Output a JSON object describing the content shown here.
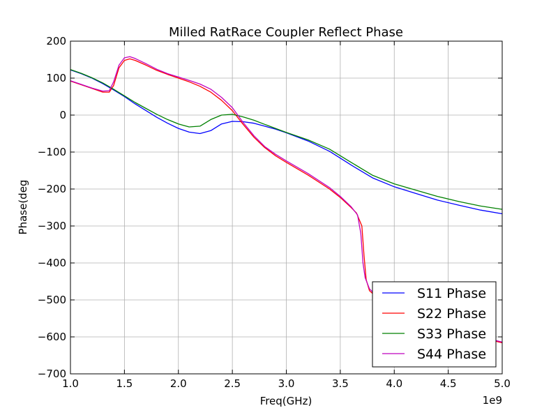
{
  "chart_data": {
    "type": "line",
    "title": "Milled RatRace Coupler Reflect Phase",
    "xlabel": "Freq(GHz)",
    "ylabel": "Phase(deg",
    "x_offset_label": "1e9",
    "xlim": [
      1.0,
      5.0
    ],
    "ylim": [
      -700,
      200
    ],
    "xticks": [
      1.0,
      1.5,
      2.0,
      2.5,
      3.0,
      3.5,
      4.0,
      4.5,
      5.0
    ],
    "xtick_labels": [
      "1.0",
      "1.5",
      "2.0",
      "2.5",
      "3.0",
      "3.5",
      "4.0",
      "4.5",
      "5.0"
    ],
    "yticks": [
      200,
      100,
      0,
      -100,
      -200,
      -300,
      -400,
      -500,
      -600,
      -700
    ],
    "ytick_labels": [
      "200",
      "100",
      "0",
      "−100",
      "−200",
      "−300",
      "−400",
      "−500",
      "−600",
      "−700"
    ],
    "grid": true,
    "legend_position": "lower-right",
    "series": [
      {
        "name": "S11 Phase",
        "color": "#0000ff",
        "points": [
          [
            1.0,
            122
          ],
          [
            1.1,
            112
          ],
          [
            1.2,
            100
          ],
          [
            1.3,
            85
          ],
          [
            1.4,
            68
          ],
          [
            1.5,
            50
          ],
          [
            1.6,
            30
          ],
          [
            1.7,
            12
          ],
          [
            1.8,
            -6
          ],
          [
            1.9,
            -22
          ],
          [
            2.0,
            -36
          ],
          [
            2.1,
            -46
          ],
          [
            2.2,
            -50
          ],
          [
            2.3,
            -42
          ],
          [
            2.4,
            -24
          ],
          [
            2.5,
            -17
          ],
          [
            2.6,
            -18
          ],
          [
            2.7,
            -22
          ],
          [
            2.8,
            -30
          ],
          [
            2.9,
            -38
          ],
          [
            3.0,
            -48
          ],
          [
            3.2,
            -70
          ],
          [
            3.4,
            -98
          ],
          [
            3.6,
            -135
          ],
          [
            3.8,
            -170
          ],
          [
            4.0,
            -194
          ],
          [
            4.2,
            -212
          ],
          [
            4.4,
            -230
          ],
          [
            4.6,
            -244
          ],
          [
            4.8,
            -257
          ],
          [
            5.0,
            -267
          ]
        ]
      },
      {
        "name": "S22 Phase",
        "color": "#ff0000",
        "points": [
          [
            1.0,
            92
          ],
          [
            1.1,
            82
          ],
          [
            1.2,
            72
          ],
          [
            1.3,
            62
          ],
          [
            1.36,
            62
          ],
          [
            1.4,
            80
          ],
          [
            1.45,
            128
          ],
          [
            1.5,
            148
          ],
          [
            1.55,
            152
          ],
          [
            1.6,
            148
          ],
          [
            1.7,
            135
          ],
          [
            1.8,
            121
          ],
          [
            1.9,
            110
          ],
          [
            2.0,
            100
          ],
          [
            2.1,
            90
          ],
          [
            2.2,
            78
          ],
          [
            2.3,
            62
          ],
          [
            2.4,
            40
          ],
          [
            2.5,
            12
          ],
          [
            2.6,
            -25
          ],
          [
            2.7,
            -60
          ],
          [
            2.8,
            -88
          ],
          [
            2.9,
            -110
          ],
          [
            3.0,
            -128
          ],
          [
            3.2,
            -162
          ],
          [
            3.4,
            -200
          ],
          [
            3.5,
            -223
          ],
          [
            3.6,
            -250
          ],
          [
            3.65,
            -265
          ],
          [
            3.7,
            -300
          ],
          [
            3.72,
            -380
          ],
          [
            3.74,
            -445
          ],
          [
            3.77,
            -475
          ],
          [
            3.82,
            -488
          ],
          [
            3.9,
            -500
          ],
          [
            4.0,
            -522
          ],
          [
            4.2,
            -549
          ],
          [
            4.4,
            -570
          ],
          [
            4.6,
            -586
          ],
          [
            4.8,
            -602
          ],
          [
            5.0,
            -616
          ]
        ]
      },
      {
        "name": "S33 Phase",
        "color": "#008000",
        "points": [
          [
            1.0,
            123
          ],
          [
            1.1,
            113
          ],
          [
            1.2,
            101
          ],
          [
            1.3,
            87
          ],
          [
            1.4,
            70
          ],
          [
            1.5,
            52
          ],
          [
            1.6,
            34
          ],
          [
            1.7,
            18
          ],
          [
            1.8,
            2
          ],
          [
            1.9,
            -12
          ],
          [
            2.0,
            -24
          ],
          [
            2.1,
            -32
          ],
          [
            2.2,
            -30
          ],
          [
            2.3,
            -12
          ],
          [
            2.4,
            0
          ],
          [
            2.5,
            2
          ],
          [
            2.6,
            -5
          ],
          [
            2.7,
            -14
          ],
          [
            2.8,
            -25
          ],
          [
            2.9,
            -36
          ],
          [
            3.0,
            -47
          ],
          [
            3.2,
            -67
          ],
          [
            3.4,
            -92
          ],
          [
            3.6,
            -128
          ],
          [
            3.8,
            -163
          ],
          [
            4.0,
            -186
          ],
          [
            4.2,
            -203
          ],
          [
            4.4,
            -220
          ],
          [
            4.6,
            -234
          ],
          [
            4.8,
            -246
          ],
          [
            5.0,
            -255
          ]
        ]
      },
      {
        "name": "S44 Phase",
        "color": "#bf00bf",
        "points": [
          [
            1.0,
            93
          ],
          [
            1.1,
            83
          ],
          [
            1.2,
            73
          ],
          [
            1.3,
            65
          ],
          [
            1.36,
            66
          ],
          [
            1.4,
            90
          ],
          [
            1.45,
            135
          ],
          [
            1.5,
            155
          ],
          [
            1.55,
            158
          ],
          [
            1.6,
            153
          ],
          [
            1.7,
            139
          ],
          [
            1.8,
            124
          ],
          [
            1.9,
            112
          ],
          [
            2.0,
            103
          ],
          [
            2.1,
            94
          ],
          [
            2.2,
            84
          ],
          [
            2.3,
            70
          ],
          [
            2.4,
            48
          ],
          [
            2.5,
            20
          ],
          [
            2.6,
            -20
          ],
          [
            2.7,
            -56
          ],
          [
            2.8,
            -85
          ],
          [
            2.9,
            -106
          ],
          [
            3.0,
            -124
          ],
          [
            3.2,
            -158
          ],
          [
            3.4,
            -196
          ],
          [
            3.5,
            -220
          ],
          [
            3.6,
            -248
          ],
          [
            3.66,
            -270
          ],
          [
            3.69,
            -320
          ],
          [
            3.71,
            -400
          ],
          [
            3.73,
            -440
          ],
          [
            3.77,
            -470
          ],
          [
            3.82,
            -485
          ],
          [
            3.9,
            -498
          ],
          [
            4.0,
            -520
          ],
          [
            4.2,
            -547
          ],
          [
            4.4,
            -568
          ],
          [
            4.6,
            -584
          ],
          [
            4.8,
            -600
          ],
          [
            5.0,
            -614
          ]
        ]
      }
    ]
  }
}
